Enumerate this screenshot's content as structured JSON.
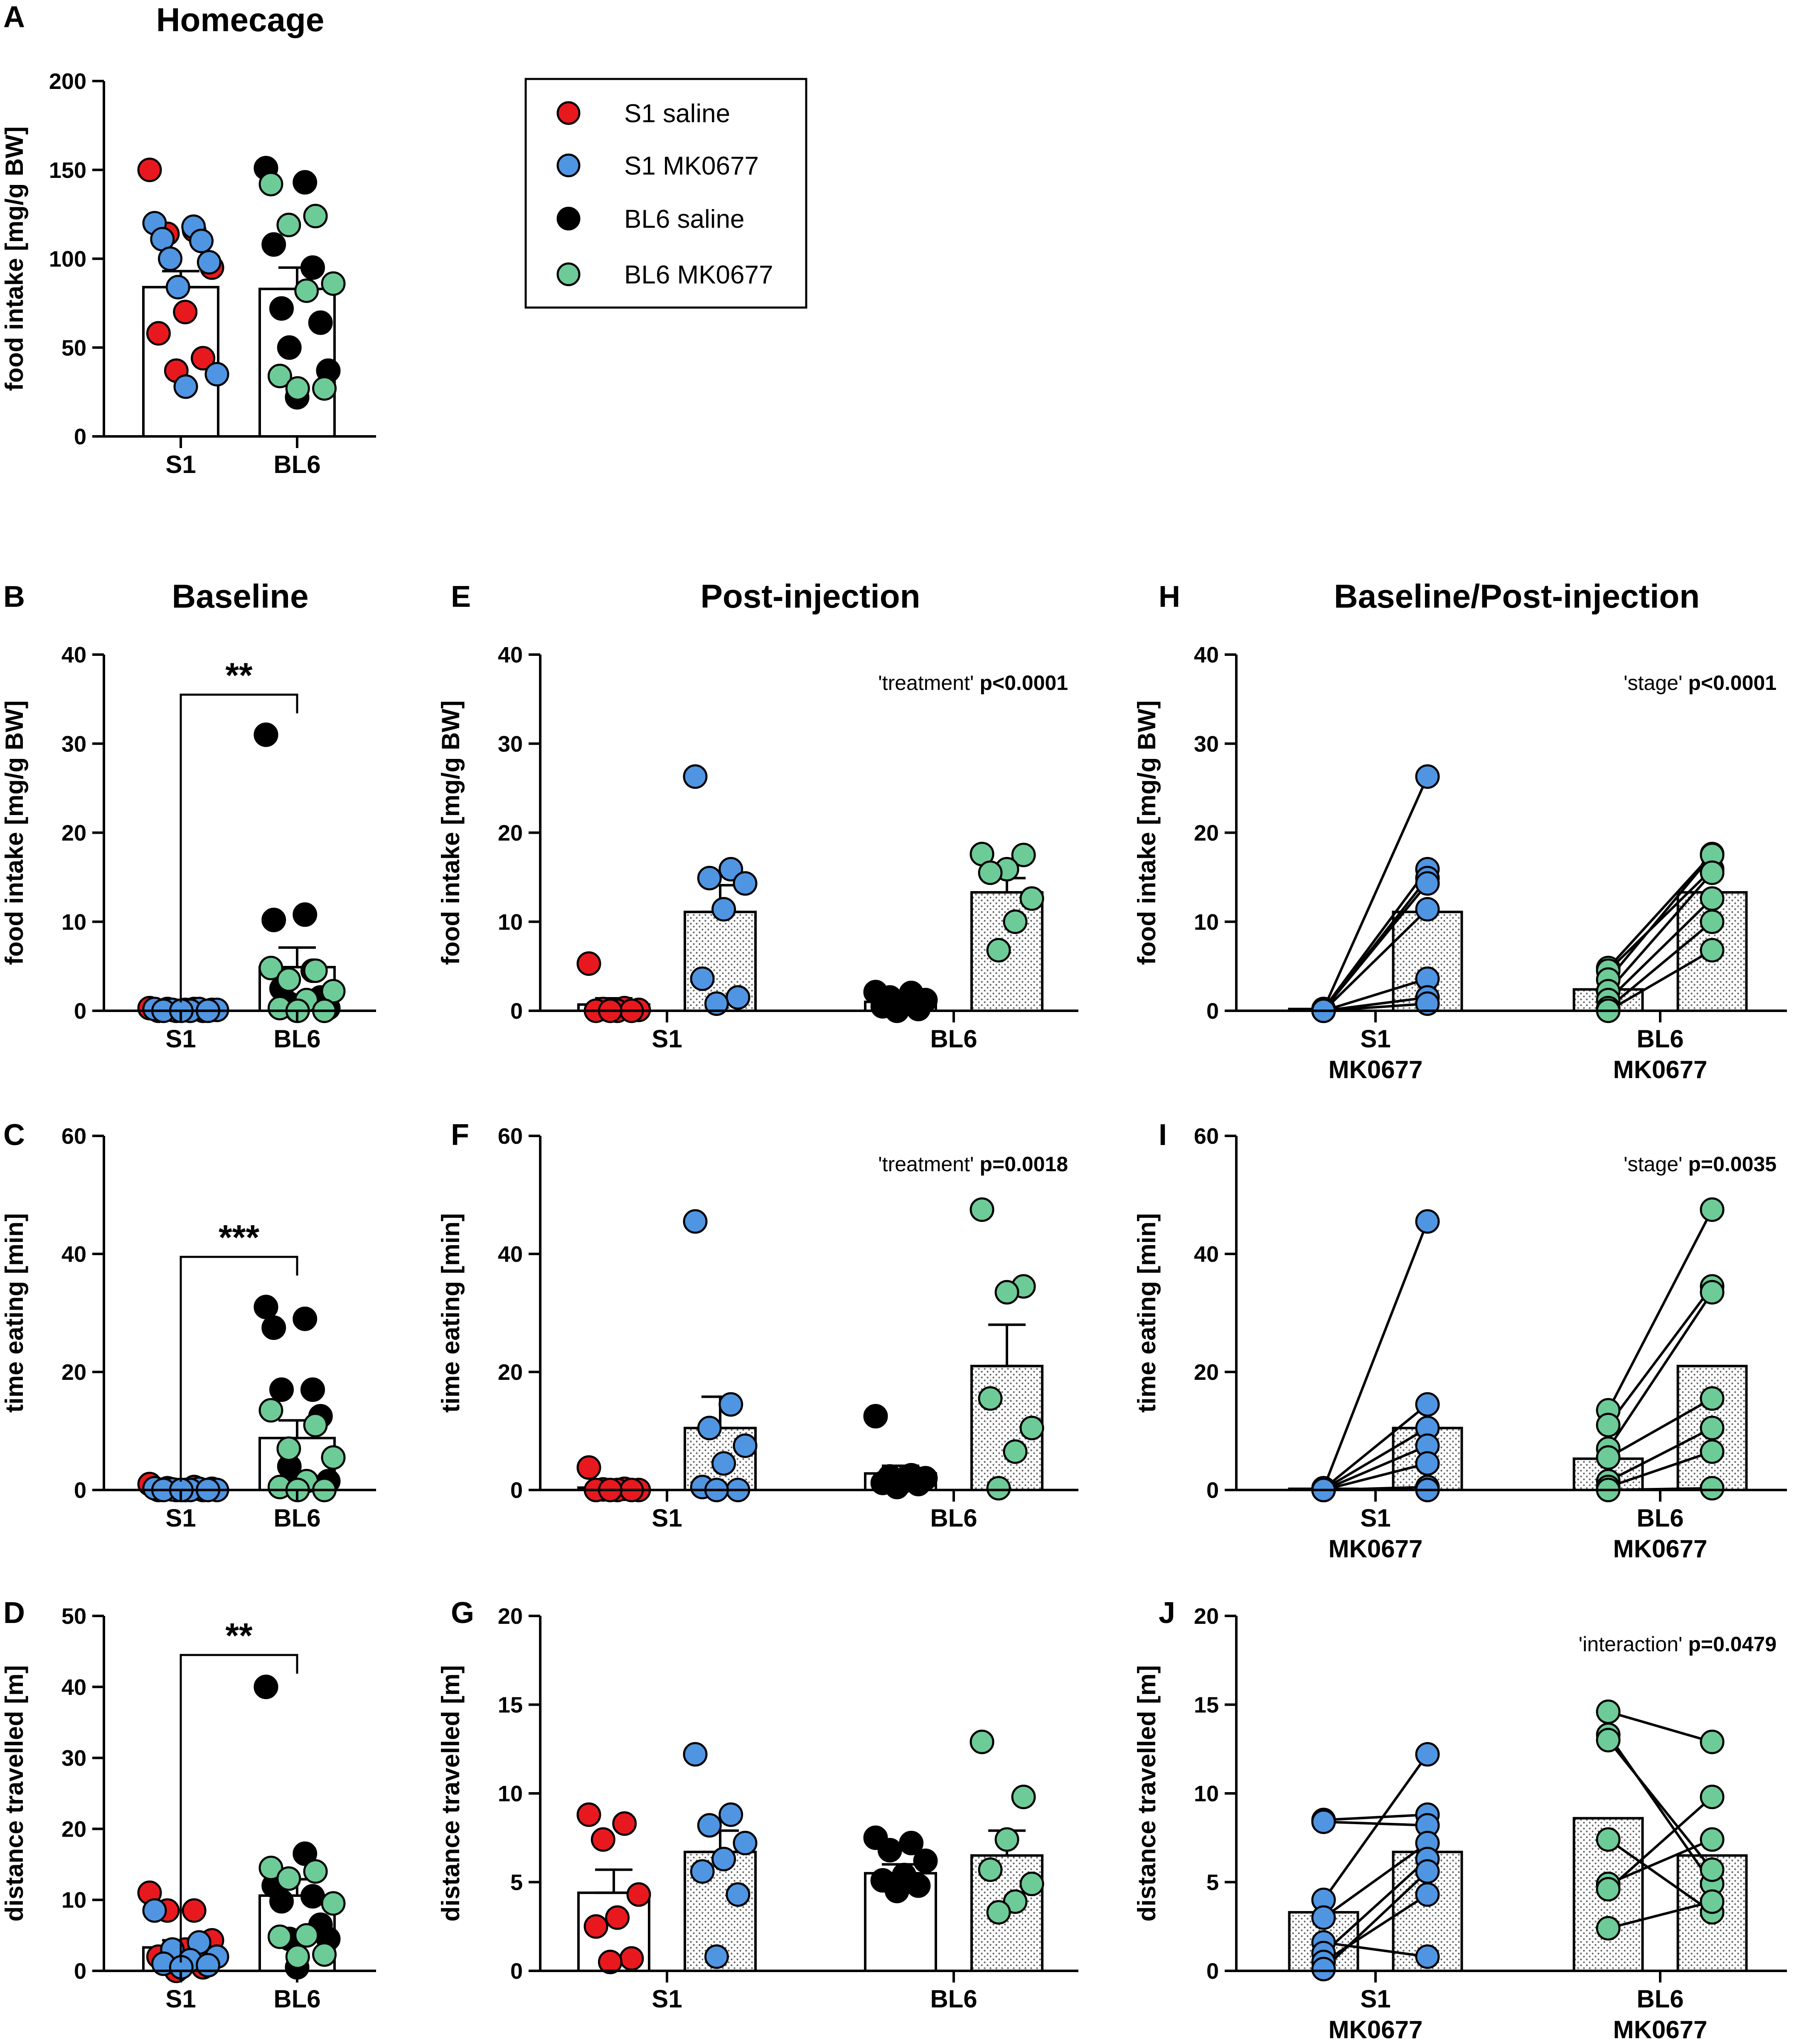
{
  "colors": {
    "S1 saline": "#e8191e",
    "S1 MK0677": "#4f95e2",
    "BL6 saline": "#000000",
    "BL6 MK0677": "#6dcb97"
  },
  "legend": {
    "entries": [
      {
        "label": "S1 saline",
        "group": "S1 saline"
      },
      {
        "label": "S1 MK0677",
        "group": "S1 MK0677"
      },
      {
        "label": "BL6 saline",
        "group": "BL6 saline"
      },
      {
        "label": "BL6 MK0677",
        "group": "BL6 MK0677"
      }
    ]
  },
  "chart_data": [
    {
      "id": "A",
      "letter": "A",
      "title": "Homecage",
      "type": "bar",
      "ylabel": "food intake [mg/g BW]",
      "ylim": [
        0,
        200
      ],
      "yticks": [
        0,
        50,
        100,
        150,
        200
      ],
      "categories": [
        "S1",
        "BL6"
      ],
      "bars": [
        {
          "cat": 0,
          "mean": 84,
          "sem": 9,
          "fill": "plain"
        },
        {
          "cat": 1,
          "mean": 83,
          "sem": 12,
          "fill": "plain"
        }
      ],
      "points": [
        {
          "cat": 0,
          "group": "S1 saline",
          "values": [
            150,
            116,
            114,
            95,
            70,
            58,
            44,
            37
          ]
        },
        {
          "cat": 0,
          "group": "S1 MK0677",
          "values": [
            120,
            118,
            111,
            110,
            100,
            98,
            84,
            35,
            28
          ]
        },
        {
          "cat": 1,
          "group": "BL6 saline",
          "values": [
            151,
            143,
            108,
            95,
            72,
            64,
            50,
            37,
            22
          ]
        },
        {
          "cat": 1,
          "group": "BL6 MK0677",
          "values": [
            142,
            124,
            119,
            86,
            82,
            34,
            27,
            27
          ]
        }
      ]
    },
    {
      "id": "B",
      "letter": "B",
      "title": "Baseline",
      "type": "bar",
      "ylabel": "food intake [mg/g BW]",
      "ylim": [
        0,
        40
      ],
      "yticks": [
        0,
        10,
        20,
        30,
        40
      ],
      "categories": [
        "S1",
        "BL6"
      ],
      "bars": [
        {
          "cat": 0,
          "mean": 0.2,
          "sem": 0.1,
          "fill": "plain"
        },
        {
          "cat": 1,
          "mean": 4.9,
          "sem": 2.2,
          "fill": "plain"
        }
      ],
      "points": [
        {
          "cat": 0,
          "group": "S1 saline",
          "values": [
            0.3,
            0.2,
            0.2,
            0.1,
            0.1,
            0,
            0,
            0
          ]
        },
        {
          "cat": 0,
          "group": "S1 MK0677",
          "values": [
            0.2,
            0.2,
            0.1,
            0.1,
            0,
            0,
            0,
            0
          ]
        },
        {
          "cat": 1,
          "group": "BL6 saline",
          "values": [
            31,
            10.8,
            10.2,
            4.5,
            2.5,
            1.5,
            0.8,
            0.3,
            0
          ]
        },
        {
          "cat": 1,
          "group": "BL6 MK0677",
          "values": [
            4.8,
            4.5,
            3.5,
            2.2,
            1.2,
            0.3,
            0,
            0
          ]
        }
      ],
      "bracket": {
        "label": "**",
        "y": 35.5
      }
    },
    {
      "id": "C",
      "letter": "C",
      "type": "bar",
      "ylabel": "time eating [min]",
      "ylim": [
        0,
        60
      ],
      "yticks": [
        0,
        20,
        40,
        60
      ],
      "categories": [
        "S1",
        "BL6"
      ],
      "bars": [
        {
          "cat": 0,
          "mean": 0.2,
          "sem": 0.1,
          "fill": "plain"
        },
        {
          "cat": 1,
          "mean": 8.8,
          "sem": 3,
          "fill": "plain"
        }
      ],
      "points": [
        {
          "cat": 0,
          "group": "S1 saline",
          "values": [
            1,
            0.5,
            0.3,
            0.2,
            0,
            0,
            0,
            0
          ]
        },
        {
          "cat": 0,
          "group": "S1 MK0677",
          "values": [
            0.3,
            0.2,
            0.1,
            0,
            0,
            0,
            0,
            0
          ]
        },
        {
          "cat": 1,
          "group": "BL6 saline",
          "values": [
            31,
            29,
            27.5,
            17,
            17,
            12.5,
            4,
            1.5,
            0.3
          ]
        },
        {
          "cat": 1,
          "group": "BL6 MK0677",
          "values": [
            13.5,
            11,
            7,
            5.5,
            1.5,
            0.5,
            0,
            0
          ]
        }
      ],
      "bracket": {
        "label": "***",
        "y": 39.5
      }
    },
    {
      "id": "D",
      "letter": "D",
      "type": "bar",
      "ylabel": "distance travelled [m]",
      "ylim": [
        0,
        50
      ],
      "yticks": [
        0,
        10,
        20,
        30,
        40,
        50
      ],
      "categories": [
        "S1",
        "BL6"
      ],
      "bars": [
        {
          "cat": 0,
          "mean": 3.3,
          "sem": 1,
          "fill": "plain"
        },
        {
          "cat": 1,
          "mean": 10.6,
          "sem": 2.3,
          "fill": "plain"
        }
      ],
      "points": [
        {
          "cat": 0,
          "group": "S1 saline",
          "values": [
            11,
            8.5,
            8.5,
            4.3,
            3,
            2,
            0.5,
            0
          ]
        },
        {
          "cat": 0,
          "group": "S1 MK0677",
          "values": [
            8.5,
            4,
            3,
            2,
            1.5,
            1,
            0.8,
            0.5
          ]
        },
        {
          "cat": 1,
          "group": "BL6 saline",
          "values": [
            40,
            16.5,
            12,
            10.5,
            9.8,
            6.5,
            4.5,
            4.5,
            0.5
          ]
        },
        {
          "cat": 1,
          "group": "BL6 MK0677",
          "values": [
            14.5,
            14,
            13,
            9.5,
            5,
            4.8,
            2.3,
            2
          ]
        }
      ],
      "bracket": {
        "label": "**",
        "y": 44.5
      }
    },
    {
      "id": "E",
      "letter": "E",
      "title": "Post-injection",
      "type": "bar",
      "ylabel": "food intake [mg/g BW]",
      "ylim": [
        0,
        40
      ],
      "yticks": [
        0,
        10,
        20,
        30,
        40
      ],
      "categories": [
        "S1",
        "BL6"
      ],
      "stat": {
        "term": "'treatment'",
        "p": "p<0.0001"
      },
      "bars": [
        {
          "cat": 0,
          "side": "left",
          "mean": 0.7,
          "sem": 0.7,
          "fill": "plain"
        },
        {
          "cat": 0,
          "side": "right",
          "mean": 11.1,
          "sem": 3,
          "fill": "dotted"
        },
        {
          "cat": 1,
          "side": "left",
          "mean": 1,
          "sem": 0.4,
          "fill": "plain"
        },
        {
          "cat": 1,
          "side": "right",
          "mean": 13.3,
          "sem": 1.6,
          "fill": "dotted"
        }
      ],
      "points": [
        {
          "cat": 0,
          "side": "left",
          "group": "S1 saline",
          "values": [
            5.3,
            0.3,
            0.2,
            0.1,
            0,
            0,
            0,
            0
          ]
        },
        {
          "cat": 0,
          "side": "right",
          "group": "S1 MK0677",
          "values": [
            26.3,
            15.9,
            14.9,
            14.3,
            11.4,
            3.6,
            1.5,
            0.8
          ]
        },
        {
          "cat": 1,
          "side": "left",
          "group": "BL6 saline",
          "values": [
            2.1,
            2,
            1.5,
            1.2,
            1,
            0.5,
            0.2,
            0
          ]
        },
        {
          "cat": 1,
          "side": "right",
          "group": "BL6 MK0677",
          "values": [
            17.6,
            17.5,
            15.9,
            15.5,
            12.6,
            10,
            6.8
          ]
        }
      ]
    },
    {
      "id": "F",
      "letter": "F",
      "type": "bar",
      "ylabel": "time eating [min]",
      "ylim": [
        0,
        60
      ],
      "yticks": [
        0,
        20,
        40,
        60
      ],
      "categories": [
        "S1",
        "BL6"
      ],
      "stat": {
        "term": "'treatment'",
        "p": "p=0.0018"
      },
      "bars": [
        {
          "cat": 0,
          "side": "left",
          "mean": 0.4,
          "sem": 0.4,
          "fill": "plain"
        },
        {
          "cat": 0,
          "side": "right",
          "mean": 10.5,
          "sem": 5.3,
          "fill": "dotted"
        },
        {
          "cat": 1,
          "side": "left",
          "mean": 2.8,
          "sem": 1.3,
          "fill": "plain"
        },
        {
          "cat": 1,
          "side": "right",
          "mean": 21,
          "sem": 7,
          "fill": "dotted"
        }
      ],
      "points": [
        {
          "cat": 0,
          "side": "left",
          "group": "S1 saline",
          "values": [
            3.8,
            0.2,
            0.1,
            0,
            0,
            0,
            0,
            0
          ]
        },
        {
          "cat": 0,
          "side": "right",
          "group": "S1 MK0677",
          "values": [
            45.5,
            14.5,
            10.5,
            7.5,
            4.5,
            0.5,
            0,
            0
          ]
        },
        {
          "cat": 1,
          "side": "left",
          "group": "BL6 saline",
          "values": [
            12.5,
            2.5,
            2.3,
            2,
            1.5,
            1.2,
            1,
            0.5
          ]
        },
        {
          "cat": 1,
          "side": "right",
          "group": "BL6 MK0677",
          "values": [
            47.5,
            34.5,
            33.5,
            15.5,
            10.5,
            6.5,
            0.3
          ]
        }
      ]
    },
    {
      "id": "G",
      "letter": "G",
      "type": "bar",
      "ylabel": "distance travelled [m]",
      "ylim": [
        0,
        20
      ],
      "yticks": [
        0,
        5,
        10,
        15,
        20
      ],
      "categories": [
        "S1",
        "BL6"
      ],
      "bars": [
        {
          "cat": 0,
          "side": "left",
          "mean": 4.4,
          "sem": 1.3,
          "fill": "plain"
        },
        {
          "cat": 0,
          "side": "right",
          "mean": 6.7,
          "sem": 1.2,
          "fill": "dotted"
        },
        {
          "cat": 1,
          "side": "left",
          "mean": 5.5,
          "sem": 0.5,
          "fill": "plain"
        },
        {
          "cat": 1,
          "side": "right",
          "mean": 6.5,
          "sem": 1.4,
          "fill": "dotted"
        }
      ],
      "points": [
        {
          "cat": 0,
          "side": "left",
          "group": "S1 saline",
          "values": [
            8.8,
            8.3,
            7.4,
            4.3,
            3,
            2.5,
            0.7,
            0.5
          ]
        },
        {
          "cat": 0,
          "side": "right",
          "group": "S1 MK0677",
          "values": [
            12.2,
            8.8,
            8.2,
            7.2,
            6.3,
            5.6,
            4.3,
            0.8
          ]
        },
        {
          "cat": 1,
          "side": "left",
          "group": "BL6 saline",
          "values": [
            7.5,
            7.2,
            6.8,
            6.2,
            5.4,
            5.1,
            4.8,
            4.5
          ]
        },
        {
          "cat": 1,
          "side": "right",
          "group": "BL6 MK0677",
          "values": [
            12.9,
            9.8,
            7.4,
            5.7,
            4.9,
            3.9,
            3.3
          ]
        }
      ]
    },
    {
      "id": "H",
      "letter": "H",
      "title": "Baseline/Post-injection",
      "type": "paired",
      "ylabel": "food intake [mg/g BW]",
      "ylim": [
        0,
        40
      ],
      "yticks": [
        0,
        10,
        20,
        30,
        40
      ],
      "categories": [
        [
          "S1",
          "MK0677"
        ],
        [
          "BL6",
          "MK0677"
        ]
      ],
      "stat": {
        "term": "'stage'",
        "p": "p<0.0001"
      },
      "groups": [
        {
          "cat": 0,
          "group": "S1 MK0677",
          "mean_baseline": 0.2,
          "mean_post": 11.1,
          "baseline": [
            0.2,
            0.2,
            0.1,
            0.1,
            0,
            0,
            0,
            0
          ],
          "post": [
            26.3,
            15.9,
            14.9,
            14.3,
            11.4,
            3.6,
            1.5,
            0.8
          ]
        },
        {
          "cat": 1,
          "group": "BL6 MK0677",
          "mean_baseline": 2.4,
          "mean_post": 13.3,
          "baseline": [
            4.8,
            4.5,
            3.5,
            2.2,
            1.2,
            0.3,
            0
          ],
          "post": [
            17.6,
            15.9,
            17.5,
            15.5,
            12.6,
            10,
            6.8
          ]
        }
      ]
    },
    {
      "id": "I",
      "letter": "I",
      "type": "paired",
      "ylabel": "time eating [min]",
      "ylim": [
        0,
        60
      ],
      "yticks": [
        0,
        20,
        40,
        60
      ],
      "categories": [
        [
          "S1",
          "MK0677"
        ],
        [
          "BL6",
          "MK0677"
        ]
      ],
      "stat": {
        "term": "'stage'",
        "p": "p=0.0035"
      },
      "groups": [
        {
          "cat": 0,
          "group": "S1 MK0677",
          "mean_baseline": 0.2,
          "mean_post": 10.5,
          "baseline": [
            0.3,
            0.2,
            0.1,
            0,
            0,
            0,
            0,
            0
          ],
          "post": [
            45.5,
            14.5,
            10.5,
            7.5,
            4.5,
            0.5,
            0,
            0
          ]
        },
        {
          "cat": 1,
          "group": "BL6 MK0677",
          "mean_baseline": 5.3,
          "mean_post": 21,
          "baseline": [
            13.5,
            11,
            7,
            5.5,
            1.5,
            0.5,
            0
          ],
          "post": [
            47.5,
            34.5,
            33.5,
            15.5,
            10.5,
            6.5,
            0.3
          ]
        }
      ]
    },
    {
      "id": "J",
      "letter": "J",
      "type": "paired",
      "ylabel": "distance travelled [m]",
      "ylim": [
        0,
        20
      ],
      "yticks": [
        0,
        5,
        10,
        15,
        20
      ],
      "categories": [
        [
          "S1",
          "MK0677"
        ],
        [
          "BL6",
          "MK0677"
        ]
      ],
      "stat": {
        "term": "'interaction'",
        "p": "p=0.0479"
      },
      "groups": [
        {
          "cat": 0,
          "group": "S1 MK0677",
          "mean_baseline": 3.3,
          "mean_post": 6.7,
          "baseline": [
            8.5,
            8.4,
            4,
            3,
            1.6,
            1,
            0.5,
            0.1
          ],
          "post": [
            8.8,
            8.2,
            12.2,
            7.2,
            0.8,
            6.3,
            4.3,
            5.6
          ]
        },
        {
          "cat": 1,
          "group": "BL6 MK0677",
          "mean_baseline": 8.6,
          "mean_post": 6.5,
          "baseline": [
            14.6,
            13.3,
            13,
            7.4,
            4.9,
            4.6,
            2.4
          ],
          "post": [
            12.9,
            4.9,
            5.7,
            3.3,
            7.4,
            9.8,
            3.9
          ]
        }
      ]
    }
  ]
}
